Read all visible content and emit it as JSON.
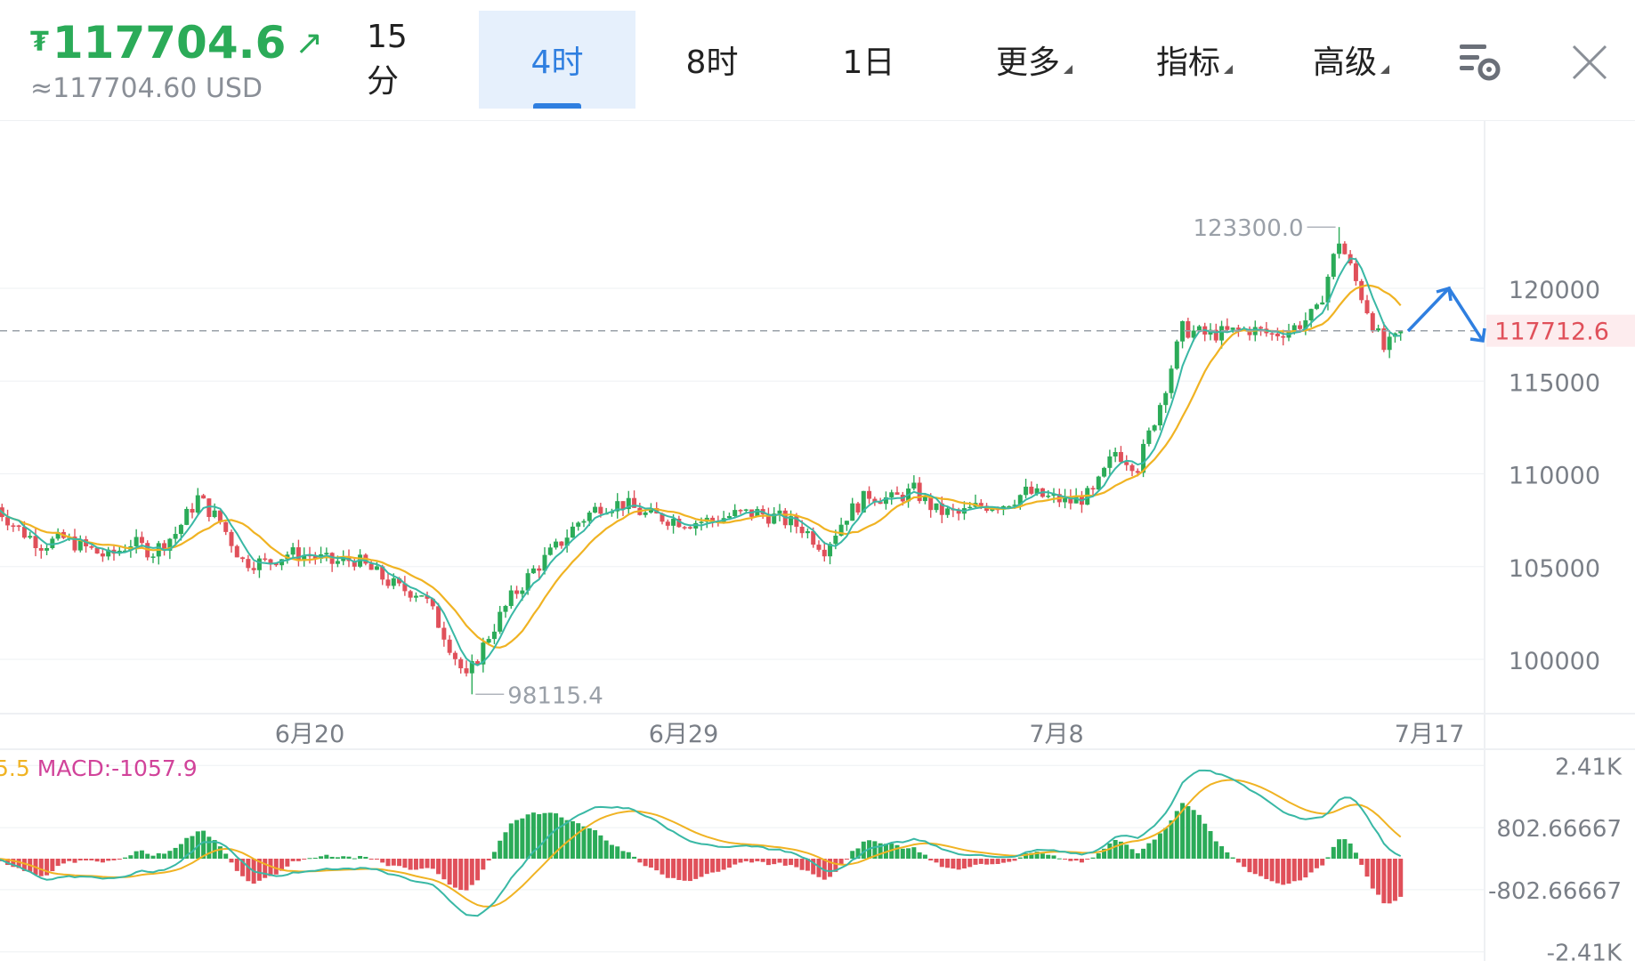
{
  "header": {
    "currency_symbol": "₮",
    "price": "117704.6",
    "price_arrow": "↗",
    "price_usd": "≈117704.60 USD",
    "tabs": [
      {
        "label": "15分",
        "active": false
      },
      {
        "label": "4时",
        "active": true
      },
      {
        "label": "8时",
        "active": false
      },
      {
        "label": "1日",
        "active": false
      },
      {
        "label": "更多",
        "active": false,
        "dropdown": true
      },
      {
        "label": "指标",
        "active": false,
        "dropdown": true
      },
      {
        "label": "高级",
        "active": false,
        "dropdown": true
      }
    ],
    "icons": [
      "chart-settings-icon",
      "close-icon"
    ]
  },
  "colors": {
    "up": "#2bab58",
    "down": "#e0505a",
    "ma_fast": "#39b8a5",
    "ma_slow": "#f0b323",
    "accent": "#2f7fe0",
    "grid": "#eef0f3",
    "axis_text": "#7a7f87"
  },
  "chart_data": [
    {
      "type": "candlestick",
      "y_axis_ticks": [
        "120000",
        "115000",
        "110000",
        "105000",
        "100000"
      ],
      "x_axis_ticks": [
        "6月20",
        "6月29",
        "7月8",
        "7月17"
      ],
      "ylim": [
        96500,
        126000
      ],
      "current_price_label": "117712.6",
      "current_price": 117712.6,
      "high_label": "123300.0",
      "high_value": 123300.0,
      "low_label": "98115.4",
      "low_value": 98115.4,
      "close_anchor_points": [
        108200,
        107000,
        106200,
        106500,
        106000,
        105500,
        106300,
        105800,
        106800,
        108700,
        107400,
        105300,
        105200,
        105700,
        105600,
        105200,
        105400,
        104600,
        103800,
        103600,
        101400,
        98900,
        101300,
        103300,
        104800,
        106000,
        107400,
        108300,
        108400,
        107800,
        107600,
        107400,
        107500,
        107800,
        107900,
        107600,
        107100,
        106000,
        107800,
        108900,
        108600,
        109100,
        108000,
        107800,
        108300,
        108400,
        109000,
        108700,
        108500,
        108900,
        111200,
        110400,
        113800,
        117800,
        117500,
        117600,
        117800,
        117500,
        117900,
        118700,
        122600,
        119600,
        116700,
        117700
      ],
      "projection_arrow": "up-then-down"
    },
    {
      "type": "macd",
      "legend_text": "5.5 MACD:-1057.9",
      "legend_prefix": "5.5",
      "legend_macd": "MACD:-1057.9",
      "y_axis_ticks": [
        "2.41K",
        "802.66667",
        "-802.66667",
        "-2.41K"
      ],
      "ylim": [
        -2410,
        2410
      ]
    }
  ]
}
